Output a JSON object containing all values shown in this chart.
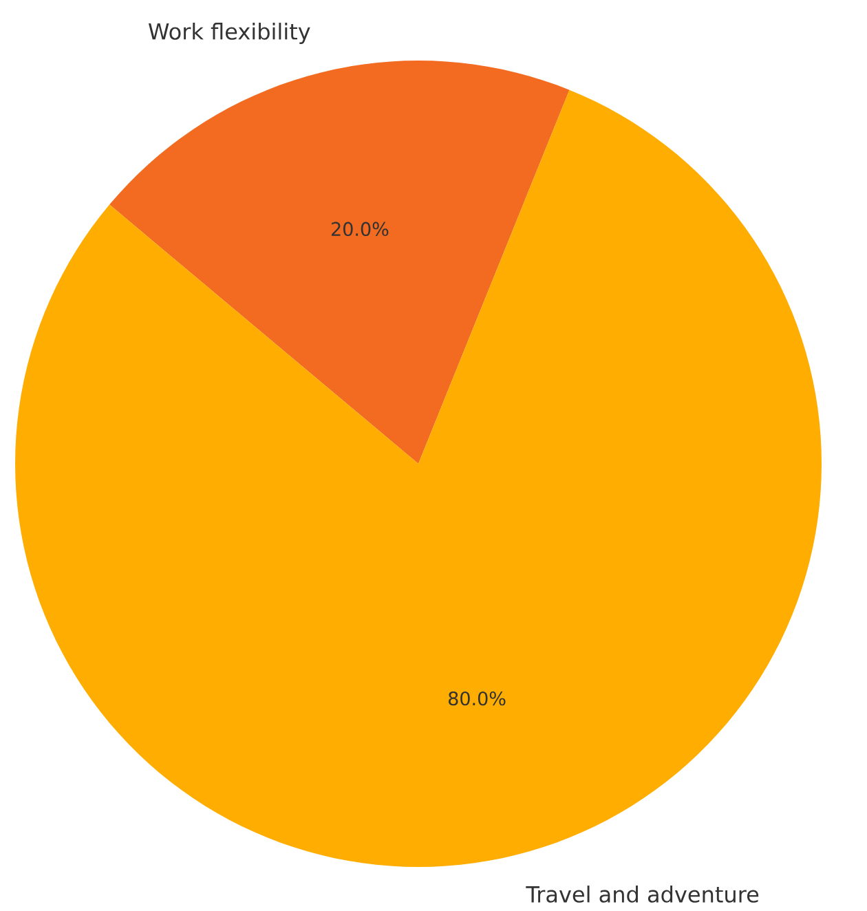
{
  "chart_data": {
    "type": "pie",
    "categories": [
      "Work flexibility",
      "Travel and adventure"
    ],
    "values": [
      20,
      80
    ],
    "colors": [
      "#f26b21",
      "#ffad00"
    ],
    "value_labels": [
      "20.0%",
      "80.0%"
    ]
  }
}
